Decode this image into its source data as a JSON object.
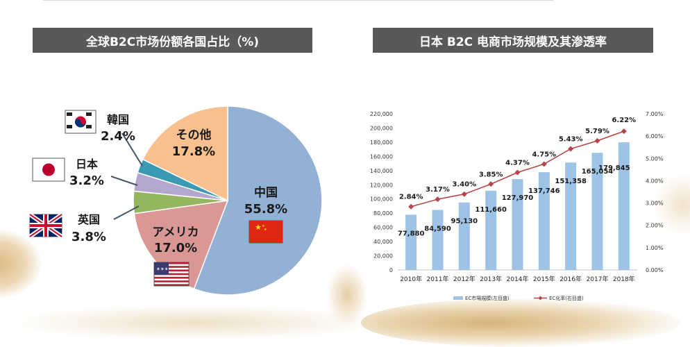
{
  "left_title": "全球B2C市场份额各国占比（%)",
  "right_title": "日本  B2C 电商市场规模及其渗透率",
  "chart_data": [
    {
      "type": "pie",
      "title": "全球B2C市场份额各国占比（%)",
      "slices": [
        {
          "name": "中国",
          "value": 55.8,
          "label": "55.8%",
          "color": "#93b0d5",
          "flag": "china-flag-icon"
        },
        {
          "name": "アメリカ",
          "value": 17.0,
          "label": "17.0%",
          "color": "#d99795",
          "flag": "usa-flag-icon"
        },
        {
          "name": "英国",
          "value": 3.8,
          "label": "3.8%",
          "color": "#93b65f",
          "flag": "uk-flag-icon"
        },
        {
          "name": "日本",
          "value": 3.2,
          "label": "3.2%",
          "color": "#b4a7cf",
          "flag": "japan-flag-icon"
        },
        {
          "name": "韓国",
          "value": 2.4,
          "label": "2.4%",
          "color": "#3a9ab4",
          "flag": "korea-flag-icon"
        },
        {
          "name": "その他",
          "value": 17.8,
          "label": "17.8%",
          "color": "#f8c08e",
          "flag": ""
        }
      ]
    },
    {
      "type": "bar+line",
      "title": "日本  B2C 电商市场规模及其渗透率",
      "categories": [
        "2010年",
        "2011年",
        "2012年",
        "2013年",
        "2014年",
        "2015年",
        "2016年",
        "2017年",
        "2018年"
      ],
      "bars": {
        "name": "EC市場規模(左目盛)",
        "values": [
          77880,
          84590,
          95130,
          111660,
          127970,
          137746,
          151358,
          165054,
          179845
        ],
        "labels": [
          "77,880",
          "84,590",
          "95,130",
          "111,660",
          "127,970",
          "137,746",
          "151,358",
          "165,054",
          "179,845"
        ],
        "color": "#9dc3e6"
      },
      "line": {
        "name": "EC化率(右目盛)",
        "values": [
          2.84,
          3.17,
          3.4,
          3.85,
          4.37,
          4.75,
          5.43,
          5.79,
          6.22
        ],
        "labels": [
          "2.84%",
          "3.17%",
          "3.40%",
          "3.85%",
          "4.37%",
          "4.75%",
          "5.43%",
          "5.79%",
          "6.22%"
        ],
        "color": "#b5454a"
      },
      "ylim_left": [
        0,
        220000
      ],
      "yticks_left": [
        "0",
        "20,000",
        "40,000",
        "60,000",
        "80,000",
        "100,000",
        "120,000",
        "140,000",
        "160,000",
        "180,000",
        "200,000",
        "220,000"
      ],
      "ylim_right": [
        0,
        7
      ],
      "yticks_right": [
        "0.00%",
        "1.00%",
        "2.00%",
        "3.00%",
        "4.00%",
        "5.00%",
        "6.00%",
        "7.00%"
      ],
      "legend": "bottom",
      "highlight_color_bar": "#1f3f7a",
      "highlight_color_line": "#c0282f"
    }
  ]
}
